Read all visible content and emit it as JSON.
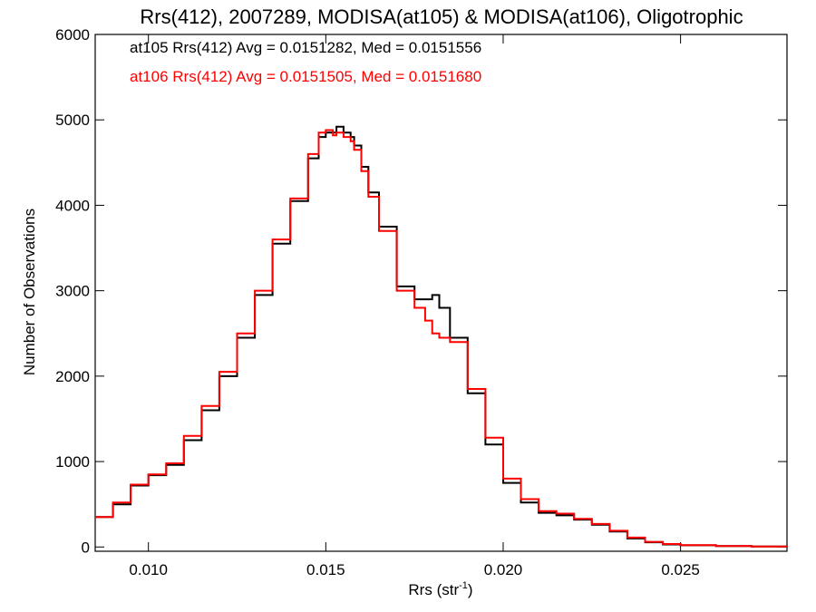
{
  "chart_data": {
    "type": "line",
    "title": "Rrs(412), 2007289, MODISA(at105) & MODISA(at106), Oligotrophic",
    "xlabel_main": "Rrs (str",
    "xlabel_sup": "-1",
    "xlabel_end": ")",
    "ylabel": "Number of Observations",
    "xlim": [
      0.0085,
      0.028
    ],
    "ylim": [
      -50,
      6000
    ],
    "xticks": [
      0.01,
      0.015,
      0.02,
      0.025
    ],
    "xtick_labels": [
      "0.010",
      "0.015",
      "0.020",
      "0.025"
    ],
    "yticks": [
      0,
      1000,
      2000,
      3000,
      4000,
      5000,
      6000
    ],
    "ytick_labels": [
      "0",
      "1000",
      "2000",
      "3000",
      "4000",
      "5000",
      "6000"
    ],
    "grid": false,
    "legend_placement": "top-left",
    "legend_entries": [
      "at105 Rrs(412) Avg = 0.0151282, Med = 0.0151556",
      "at106 Rrs(412) Avg = 0.0151505, Med = 0.0151680"
    ],
    "step_style": "histogram",
    "series": [
      {
        "color": "#000000",
        "x": [
          0.0085,
          0.009,
          0.0095,
          0.01,
          0.0105,
          0.011,
          0.0115,
          0.012,
          0.0125,
          0.013,
          0.0135,
          0.014,
          0.0145,
          0.0148,
          0.015,
          0.0152,
          0.0153,
          0.0155,
          0.0157,
          0.0158,
          0.016,
          0.0162,
          0.0165,
          0.017,
          0.0175,
          0.0178,
          0.018,
          0.0182,
          0.0185,
          0.019,
          0.0195,
          0.02,
          0.0205,
          0.021,
          0.0215,
          0.022,
          0.0225,
          0.023,
          0.0235,
          0.024,
          0.0245,
          0.025,
          0.026,
          0.027,
          0.028
        ],
        "y": [
          350,
          500,
          720,
          840,
          960,
          1250,
          1600,
          2000,
          2450,
          2950,
          3550,
          4050,
          4550,
          4800,
          4850,
          4850,
          4920,
          4850,
          4800,
          4700,
          4450,
          4150,
          3750,
          3050,
          2900,
          2900,
          2950,
          2800,
          2450,
          1800,
          1200,
          750,
          520,
          400,
          370,
          320,
          260,
          180,
          100,
          55,
          30,
          20,
          10,
          5,
          0
        ]
      },
      {
        "color": "#ff0000",
        "x": [
          0.0085,
          0.009,
          0.0095,
          0.01,
          0.0105,
          0.011,
          0.0115,
          0.012,
          0.0125,
          0.013,
          0.0135,
          0.014,
          0.0145,
          0.0148,
          0.015,
          0.0152,
          0.0153,
          0.0155,
          0.0157,
          0.0158,
          0.016,
          0.0162,
          0.0165,
          0.017,
          0.0175,
          0.0178,
          0.018,
          0.0182,
          0.0185,
          0.019,
          0.0195,
          0.02,
          0.0205,
          0.021,
          0.0215,
          0.022,
          0.0225,
          0.023,
          0.0235,
          0.024,
          0.0245,
          0.025,
          0.026,
          0.027,
          0.028
        ],
        "y": [
          350,
          520,
          730,
          850,
          980,
          1300,
          1650,
          2050,
          2500,
          3000,
          3600,
          4080,
          4600,
          4850,
          4880,
          4820,
          4850,
          4800,
          4750,
          4650,
          4400,
          4100,
          3700,
          3000,
          2800,
          2650,
          2500,
          2450,
          2400,
          1850,
          1280,
          800,
          560,
          420,
          390,
          330,
          270,
          190,
          110,
          60,
          35,
          22,
          10,
          5,
          0
        ]
      }
    ]
  }
}
